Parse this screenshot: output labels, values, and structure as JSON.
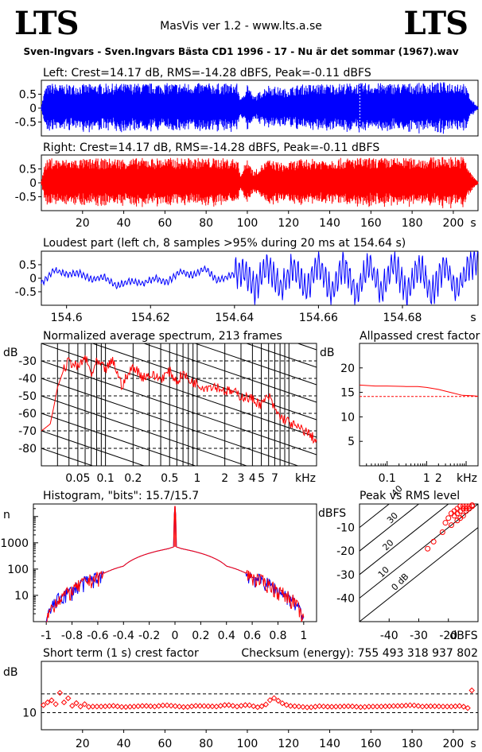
{
  "header": {
    "logo_left": "LTS",
    "logo_right": "LTS",
    "app_title": "MasVis ver 1.2 - www.lts.a.se",
    "file_title": "Sven-Ingvars - Sven.Ingvars Bästa CD1 1996 - 17 - Nu är det sommar (1967).wav"
  },
  "colors": {
    "left": "#0000ff",
    "right": "#ff0000",
    "frame": "#000000",
    "dashed": "#000000"
  },
  "chart_data": [
    {
      "id": "waveform-left",
      "type": "area",
      "title": "Left: Crest=14.17 dB, RMS=-14.28 dBFS, Peak=-0.11 dBFS",
      "ytick_labels": [
        "0.5",
        "0",
        "-0.5"
      ],
      "ylim": [
        -1,
        1
      ],
      "xlim": [
        0,
        212
      ],
      "yticks": [
        0.5,
        0,
        -0.5
      ],
      "series": [
        {
          "x": [
            0,
            2,
            5,
            10,
            30,
            60,
            80,
            95,
            97,
            100,
            103,
            110,
            118,
            125,
            150,
            180,
            200,
            205,
            209,
            212
          ],
          "envelope": [
            0.1,
            0.8,
            0.9,
            0.85,
            0.88,
            0.9,
            0.9,
            0.88,
            0.3,
            0.95,
            0.4,
            0.85,
            0.7,
            0.85,
            0.9,
            0.9,
            0.95,
            0.95,
            0.3,
            0.05
          ]
        }
      ],
      "markers": [
        {
          "x": 154.64,
          "label": ""
        }
      ]
    },
    {
      "id": "waveform-right",
      "type": "area",
      "title": "Right: Crest=14.17 dB, RMS=-14.28 dBFS, Peak=-0.11 dBFS",
      "ytick_labels": [
        "0.5",
        "0",
        "-0.5"
      ],
      "xtick_labels": [
        "20",
        "40",
        "60",
        "80",
        "100",
        "120",
        "140",
        "160",
        "180",
        "200",
        "s"
      ],
      "ylim": [
        -1,
        1
      ],
      "xlim": [
        0,
        212
      ],
      "yticks": [
        0.5,
        0,
        -0.5
      ],
      "xticks": [
        20,
        40,
        60,
        80,
        100,
        120,
        140,
        160,
        180,
        200
      ],
      "series": [
        {
          "x": [
            0,
            2,
            5,
            10,
            30,
            60,
            80,
            95,
            97,
            100,
            103,
            110,
            118,
            125,
            150,
            180,
            200,
            205,
            209,
            212
          ],
          "envelope": [
            0.1,
            0.8,
            0.9,
            0.85,
            0.88,
            0.9,
            0.9,
            0.88,
            0.3,
            0.95,
            0.4,
            0.85,
            0.7,
            0.85,
            0.9,
            0.9,
            0.95,
            0.95,
            0.3,
            0.05
          ]
        }
      ]
    },
    {
      "id": "loudest-part",
      "type": "line",
      "title": "Loudest part (left  ch, 8 samples >95% during 20 ms at 154.64 s)",
      "ytick_labels": [
        "0.5",
        "0",
        "-0.5"
      ],
      "xtick_labels": [
        "154.6",
        "154.62",
        "154.64",
        "154.66",
        "154.68",
        "s"
      ],
      "xlim": [
        154.594,
        154.698
      ],
      "ylim": [
        -1,
        1
      ],
      "yticks": [
        0.5,
        0,
        -0.5
      ],
      "xticks": [
        154.6,
        154.62,
        154.64,
        154.66,
        154.68
      ],
      "x": [
        154.594,
        154.597,
        154.6,
        154.603,
        154.606,
        154.609,
        154.612,
        154.615,
        154.618,
        154.621,
        154.624,
        154.627,
        154.63,
        154.633,
        154.636,
        154.639,
        154.642,
        154.645,
        154.648,
        154.651,
        154.654,
        154.657,
        154.66,
        154.663,
        154.666,
        154.669,
        154.672,
        154.675,
        154.678,
        154.681,
        154.684,
        154.687,
        154.69,
        154.693,
        154.696
      ],
      "y": [
        -0.2,
        0.3,
        0.15,
        0.2,
        -0.05,
        0.05,
        -0.3,
        -0.1,
        -0.2,
        0.0,
        -0.15,
        0.25,
        0.1,
        0.35,
        -0.1,
        0.1,
        0.3,
        -0.35,
        0.5,
        -0.4,
        0.45,
        -0.5,
        0.6,
        -0.55,
        0.5,
        -0.6,
        0.55,
        -0.5,
        0.6,
        -0.55,
        0.5,
        -0.6,
        0.55,
        -0.45,
        0.6
      ]
    },
    {
      "id": "spectrum",
      "type": "line",
      "title": "Normalized average spectrum, 213 frames",
      "ylabel": "dB",
      "ytick_labels": [
        "-30",
        "-40",
        "-50",
        "-60",
        "-70",
        "-80"
      ],
      "xtick_labels": [
        "0.05",
        "0.1",
        "0.2",
        "0.5",
        "1",
        "2",
        "3",
        "4",
        "5",
        "7",
        "kHz"
      ],
      "xscale": "log",
      "xlim": [
        0.02,
        20
      ],
      "ylim": [
        -90,
        -20
      ],
      "yticks": [
        -30,
        -40,
        -50,
        -60,
        -70,
        -80
      ],
      "xticks": [
        0.05,
        0.1,
        0.2,
        0.5,
        1,
        2,
        3,
        4,
        5,
        7
      ],
      "grid": "dashed horizontal, vertical at decade divisions, diagonal slopes",
      "x": [
        0.02,
        0.025,
        0.03,
        0.035,
        0.04,
        0.05,
        0.06,
        0.07,
        0.08,
        0.1,
        0.12,
        0.15,
        0.2,
        0.25,
        0.3,
        0.4,
        0.5,
        0.6,
        0.7,
        0.8,
        1,
        1.2,
        1.5,
        2,
        2.5,
        3,
        4,
        5,
        6,
        7,
        8,
        10,
        12,
        15,
        20
      ],
      "y": [
        -70,
        -66,
        -45,
        -35,
        -30,
        -34,
        -28,
        -38,
        -31,
        -35,
        -30,
        -44,
        -33,
        -39,
        -38,
        -40,
        -36,
        -42,
        -37,
        -41,
        -43,
        -45,
        -44,
        -47,
        -48,
        -50,
        -52,
        -55,
        -50,
        -58,
        -62,
        -65,
        -68,
        -70,
        -76
      ]
    },
    {
      "id": "allpassed-crest",
      "type": "line",
      "title": "Allpassed crest factor",
      "ylabel": "dB",
      "ytick_labels": [
        "20",
        "15",
        "10",
        "5"
      ],
      "xtick_labels": [
        "0.1",
        "1",
        "2",
        "kHz"
      ],
      "xscale": "log",
      "xlim": [
        0.02,
        20
      ],
      "ylim": [
        0,
        25
      ],
      "yticks": [
        20,
        15,
        10,
        5
      ],
      "xticks": [
        0.1,
        1,
        2
      ],
      "reference": 14.17,
      "x": [
        0.02,
        0.05,
        0.1,
        0.3,
        0.6,
        1,
        2,
        4,
        8,
        15,
        20
      ],
      "y": [
        16.5,
        16.3,
        16.3,
        16.2,
        16.2,
        16.0,
        15.6,
        15.0,
        14.4,
        14.3,
        14.2
      ]
    },
    {
      "id": "histogram",
      "type": "line",
      "title": "Histogram, \"bits\": 15.7/15.7",
      "ylabel": "n",
      "ytick_labels": [
        "1000",
        "100",
        "10"
      ],
      "xtick_labels": [
        "-1",
        "-0.8",
        "-0.6",
        "-0.4",
        "-0.2",
        "0",
        "0.2",
        "0.4",
        "0.6",
        "0.8",
        "1"
      ],
      "yscale": "log",
      "xlim": [
        -1.1,
        1.1
      ],
      "ylim": [
        1,
        30000
      ],
      "xticks": [
        -1,
        -0.8,
        -0.6,
        -0.4,
        -0.2,
        0,
        0.2,
        0.4,
        0.6,
        0.8,
        1
      ],
      "yticks": [
        1000,
        100,
        10
      ],
      "x": [
        -1,
        -0.98,
        -0.95,
        -0.9,
        -0.8,
        -0.6,
        -0.4,
        -0.2,
        -0.05,
        -0.01,
        0,
        0.01,
        0.05,
        0.2,
        0.4,
        0.6,
        0.8,
        0.9,
        0.95,
        0.98,
        1
      ],
      "y": [
        1,
        2,
        4,
        8,
        15,
        50,
        130,
        400,
        600,
        700,
        25000,
        700,
        600,
        400,
        130,
        50,
        15,
        8,
        4,
        2,
        1
      ]
    },
    {
      "id": "peak-vs-rms",
      "type": "scatter",
      "title": "Peak vs RMS level",
      "ylabel": "dBFS",
      "xlabel": "dBFS",
      "ytick_labels": [
        "-10",
        "-20",
        "-30",
        "-40"
      ],
      "xtick_labels": [
        "-40",
        "-30",
        "-20"
      ],
      "xlim": [
        -50,
        -10
      ],
      "ylim": [
        -50,
        0
      ],
      "xticks": [
        -40,
        -30,
        -20
      ],
      "yticks": [
        -10,
        -20,
        -30,
        -40
      ],
      "diagonal_labels": [
        "40",
        "30",
        "20",
        "10",
        "0 dB"
      ],
      "x": [
        -27,
        -25,
        -22,
        -21,
        -20,
        -19,
        -19,
        -18,
        -18,
        -17,
        -17,
        -17,
        -16,
        -16,
        -16,
        -15,
        -15,
        -15,
        -14,
        -14,
        -14,
        -13,
        -13,
        -12,
        -12
      ],
      "y": [
        -19,
        -16,
        -12,
        -8,
        -6,
        -9,
        -4,
        -5,
        -3,
        -7,
        -4,
        -2,
        -6,
        -3,
        -1,
        -5,
        -2,
        -1,
        -3,
        -2,
        -1,
        -2,
        -1,
        -1,
        -0.5
      ]
    },
    {
      "id": "short-term-crest",
      "type": "scatter",
      "title": "Short term (1 s) crest factor",
      "ylabel": "dB",
      "annotation": "Checksum (energy):   755 493 318 937 802",
      "ytick_labels": [
        "10"
      ],
      "xtick_labels": [
        "20",
        "40",
        "60",
        "80",
        "100",
        "120",
        "140",
        "160",
        "180",
        "200",
        "s"
      ],
      "xlim": [
        0,
        212
      ],
      "ylim": [
        5,
        25
      ],
      "yticks": [
        10
      ],
      "xticks": [
        20,
        40,
        60,
        80,
        100,
        120,
        140,
        160,
        180,
        200
      ],
      "dashed_lines": [
        10,
        15.5
      ],
      "x": [
        1,
        3,
        5,
        7,
        9,
        11,
        13,
        15,
        17,
        19,
        21,
        23,
        25,
        30,
        35,
        40,
        45,
        50,
        55,
        60,
        65,
        70,
        75,
        80,
        85,
        90,
        95,
        100,
        105,
        108,
        110,
        112,
        114,
        116,
        120,
        125,
        130,
        135,
        140,
        145,
        150,
        155,
        160,
        165,
        170,
        175,
        180,
        185,
        190,
        195,
        200,
        204,
        206,
        208,
        209
      ],
      "y": [
        12.2,
        13.0,
        13.6,
        12.5,
        15.8,
        13.0,
        14.2,
        12.0,
        12.8,
        11.8,
        12.5,
        11.7,
        11.8,
        11.8,
        12.0,
        11.6,
        11.8,
        12.0,
        11.8,
        12.2,
        11.9,
        11.6,
        12.0,
        11.9,
        11.8,
        12.3,
        11.8,
        12.3,
        11.6,
        12.0,
        12.8,
        14.5,
        14.0,
        13.0,
        12.0,
        11.8,
        11.5,
        11.9,
        11.7,
        11.8,
        11.9,
        11.6,
        11.8,
        11.8,
        11.9,
        12.0,
        12.2,
        11.8,
        11.9,
        11.8,
        11.8,
        12.0,
        11.5,
        11.2,
        16.5
      ]
    }
  ]
}
